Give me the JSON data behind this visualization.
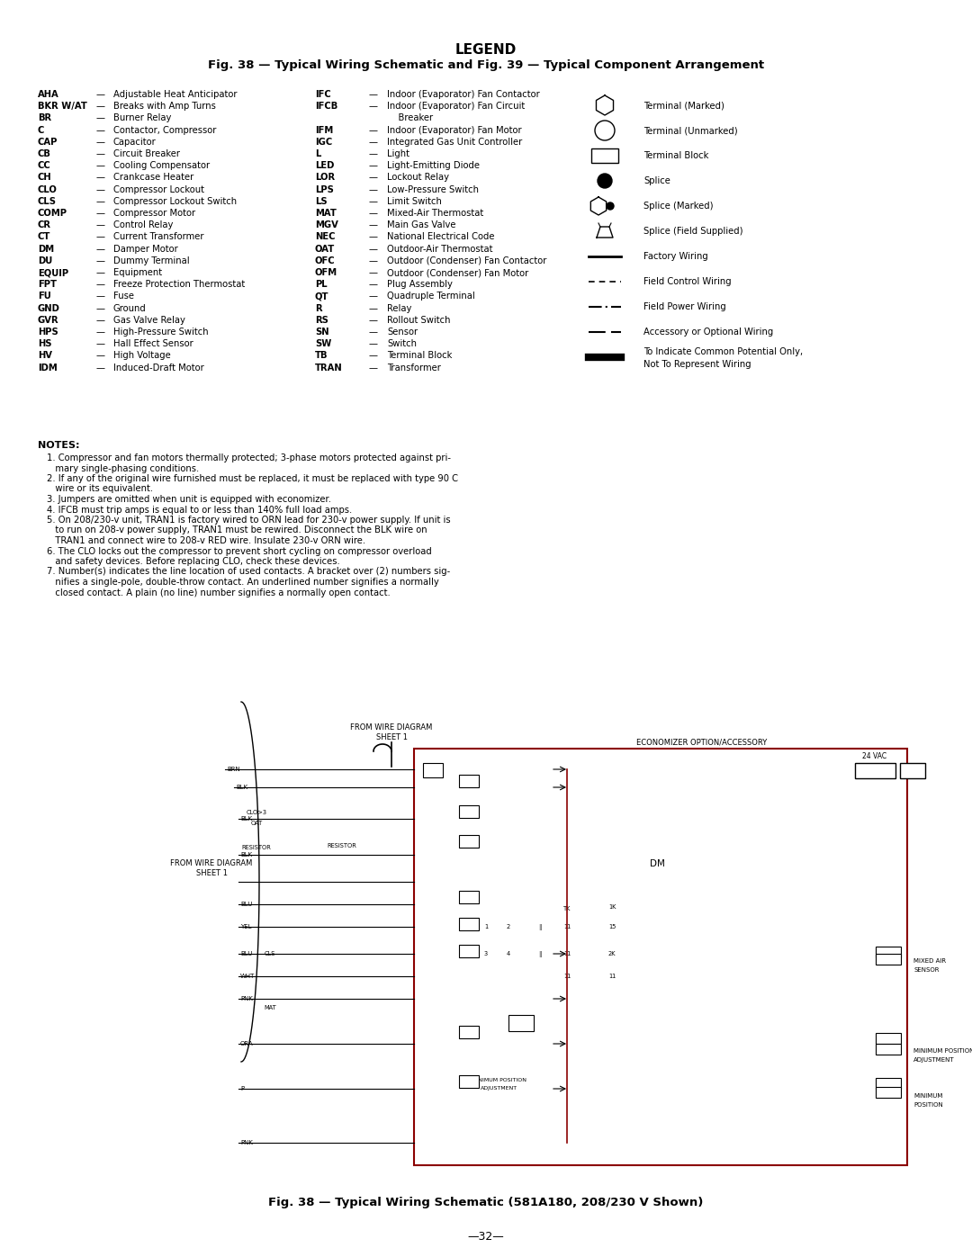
{
  "title_legend": "LEGEND",
  "subtitle": "Fig. 38 — Typical Wiring Schematic and Fig. 39 — Typical Component Arrangement",
  "legend_col1": [
    [
      "AHA",
      "Adjustable Heat Anticipator"
    ],
    [
      "BKR W/AT",
      "Breaks with Amp Turns"
    ],
    [
      "BR",
      "Burner Relay"
    ],
    [
      "C",
      "Contactor, Compressor"
    ],
    [
      "CAP",
      "Capacitor"
    ],
    [
      "CB",
      "Circuit Breaker"
    ],
    [
      "CC",
      "Cooling Compensator"
    ],
    [
      "CH",
      "Crankcase Heater"
    ],
    [
      "CLO",
      "Compressor Lockout"
    ],
    [
      "CLS",
      "Compressor Lockout Switch"
    ],
    [
      "COMP",
      "Compressor Motor"
    ],
    [
      "CR",
      "Control Relay"
    ],
    [
      "CT",
      "Current Transformer"
    ],
    [
      "DM",
      "Damper Motor"
    ],
    [
      "DU",
      "Dummy Terminal"
    ],
    [
      "EQUIP",
      "Equipment"
    ],
    [
      "FPT",
      "Freeze Protection Thermostat"
    ],
    [
      "FU",
      "Fuse"
    ],
    [
      "GND",
      "Ground"
    ],
    [
      "GVR",
      "Gas Valve Relay"
    ],
    [
      "HPS",
      "High-Pressure Switch"
    ],
    [
      "HS",
      "Hall Effect Sensor"
    ],
    [
      "HV",
      "High Voltage"
    ],
    [
      "IDM",
      "Induced-Draft Motor"
    ]
  ],
  "legend_col2": [
    [
      "IFC",
      "Indoor (Evaporator) Fan Contactor",
      false
    ],
    [
      "IFCB",
      "Indoor (Evaporator) Fan Circuit",
      true
    ],
    [
      "",
      "    Breaker",
      false
    ],
    [
      "IFM",
      "Indoor (Evaporator) Fan Motor",
      false
    ],
    [
      "IGC",
      "Integrated Gas Unit Controller",
      false
    ],
    [
      "L",
      "Light",
      false
    ],
    [
      "LED",
      "Light-Emitting Diode",
      false
    ],
    [
      "LOR",
      "Lockout Relay",
      false
    ],
    [
      "LPS",
      "Low-Pressure Switch",
      false
    ],
    [
      "LS",
      "Limit Switch",
      false
    ],
    [
      "MAT",
      "Mixed-Air Thermostat",
      false
    ],
    [
      "MGV",
      "Main Gas Valve",
      false
    ],
    [
      "NEC",
      "National Electrical Code",
      false
    ],
    [
      "OAT",
      "Outdoor-Air Thermostat",
      false
    ],
    [
      "OFC",
      "Outdoor (Condenser) Fan Contactor",
      false
    ],
    [
      "OFM",
      "Outdoor (Condenser) Fan Motor",
      false
    ],
    [
      "PL",
      "Plug Assembly",
      false
    ],
    [
      "QT",
      "Quadruple Terminal",
      false
    ],
    [
      "R",
      "Relay",
      false
    ],
    [
      "RS",
      "Rollout Switch",
      false
    ],
    [
      "SN",
      "Sensor",
      false
    ],
    [
      "SW",
      "Switch",
      false
    ],
    [
      "TB",
      "Terminal Block",
      false
    ],
    [
      "TRAN",
      "Transformer",
      false
    ]
  ],
  "legend_symbols": [
    "Terminal (Marked)",
    "Terminal (Unmarked)",
    "Terminal Block",
    "Splice",
    "Splice (Marked)",
    "Splice (Field Supplied)",
    "Factory Wiring",
    "Field Control Wiring",
    "Field Power Wiring",
    "Accessory or Optional Wiring",
    "To Indicate Common Potential Only,\nNot To Represent Wiring"
  ],
  "notes_title": "NOTES:",
  "notes": [
    "Compressor and fan motors thermally protected; 3-phase motors protected against pri-\n   mary single-phasing conditions.",
    "If any of the original wire furnished must be replaced, it must be replaced with type 90 C\n   wire or its equivalent.",
    "Jumpers are omitted when unit is equipped with economizer.",
    "IFCB must trip amps is equal to or less than 140% full load amps.",
    "On 208/230-v unit, TRAN1 is factory wired to ORN lead for 230-v power supply. If unit is\n   to run on 208-v power supply, TRAN1 must be rewired. Disconnect the BLK wire on\n   TRAN1 and connect wire to 208-v RED wire. Insulate 230-v ORN wire.",
    "The CLO locks out the compressor to prevent short cycling on compressor overload\n   and safety devices. Before replacing CLO, check these devices.",
    "Number(s) indicates the line location of used contacts. A bracket over (2) numbers sig-\n   nifies a single-pole, double-throw contact. An underlined number signifies a normally\n   closed contact. A plain (no line) number signifies a normally open contact."
  ],
  "fig38_caption": "Fig. 38 — Typical Wiring Schematic (581A180, 208/230 V Shown)",
  "page_number": "—32—",
  "bg_color": "#ffffff",
  "text_color": "#000000"
}
